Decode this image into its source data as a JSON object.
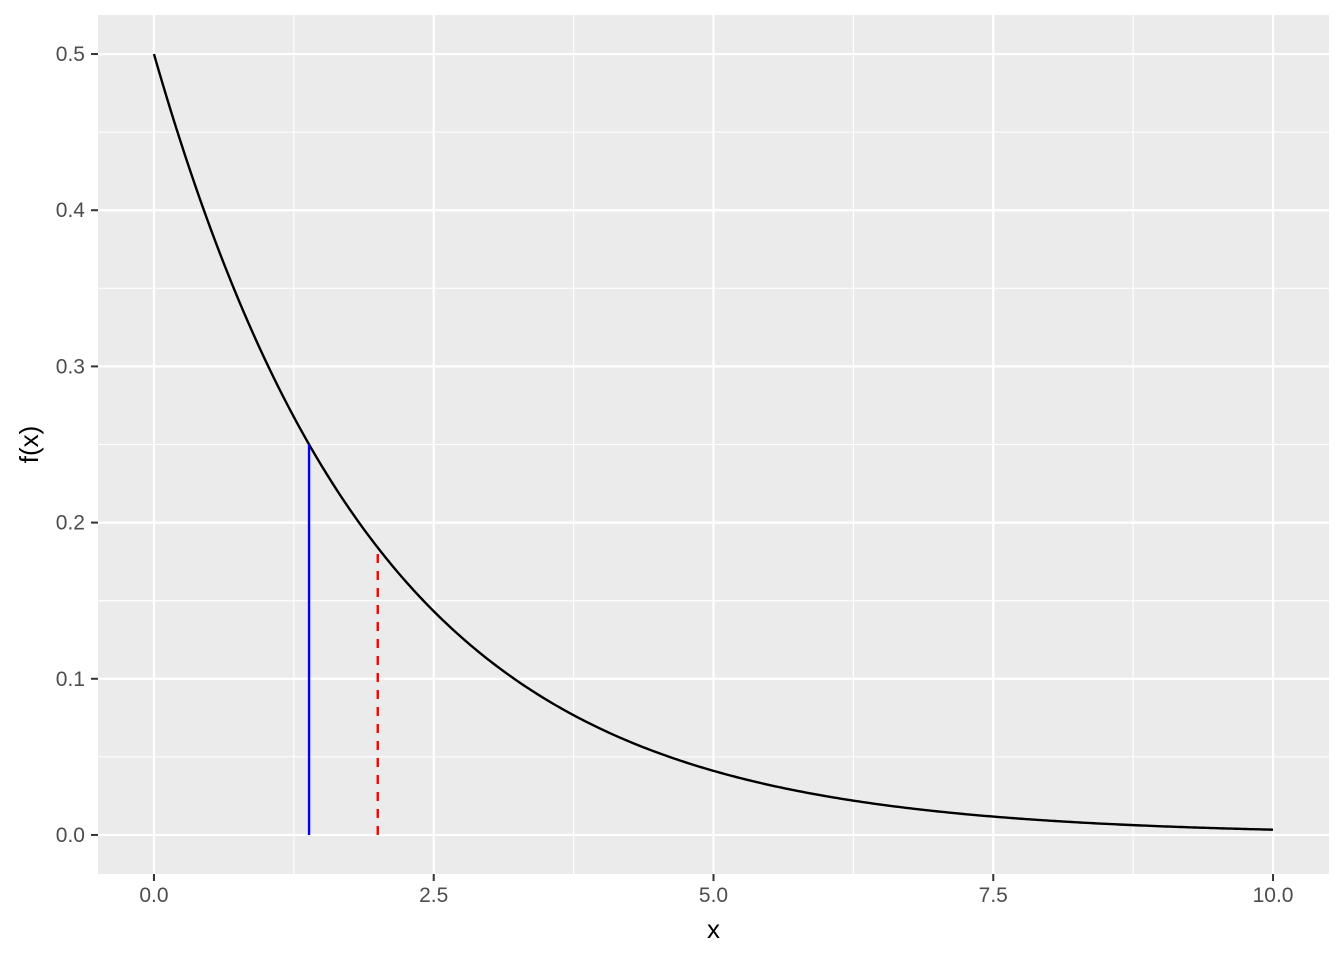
{
  "chart_data": {
    "type": "line",
    "title": "",
    "xlabel": "x",
    "ylabel": "f(x)",
    "xlim": [
      -0.5,
      10.5
    ],
    "ylim": [
      -0.025,
      0.525
    ],
    "x_ticks": [
      0.0,
      2.5,
      5.0,
      7.5,
      10.0
    ],
    "x_tick_labels": [
      "0.0",
      "2.5",
      "5.0",
      "7.5",
      "10.0"
    ],
    "y_ticks": [
      0.0,
      0.1,
      0.2,
      0.3,
      0.4,
      0.5
    ],
    "y_tick_labels": [
      "0.0",
      "0.1",
      "0.2",
      "0.3",
      "0.4",
      "0.5"
    ],
    "grid": true,
    "legend": "none",
    "series": [
      {
        "function": "0.5 * exp(-0.5 * x)",
        "x": [
          0,
          0.5,
          1,
          1.5,
          2,
          2.5,
          3,
          3.5,
          4,
          4.5,
          5,
          5.5,
          6,
          6.5,
          7,
          7.5,
          8,
          8.5,
          9,
          9.5,
          10
        ],
        "values": [
          0.5,
          0.389,
          0.303,
          0.236,
          0.184,
          0.143,
          0.112,
          0.087,
          0.068,
          0.053,
          0.041,
          0.032,
          0.025,
          0.019,
          0.015,
          0.012,
          0.009,
          0.007,
          0.006,
          0.004,
          0.003
        ],
        "color": "#000000"
      }
    ],
    "vlines": [
      {
        "x": 1.386,
        "y": 0.25,
        "color": "#0000ff",
        "style": "solid"
      },
      {
        "x": 2.0,
        "y": 0.184,
        "color": "#ff0000",
        "style": "dashed"
      }
    ],
    "colors": {
      "panel_background": "#ebebeb",
      "grid": "#ffffff",
      "tick": "#333333"
    }
  }
}
